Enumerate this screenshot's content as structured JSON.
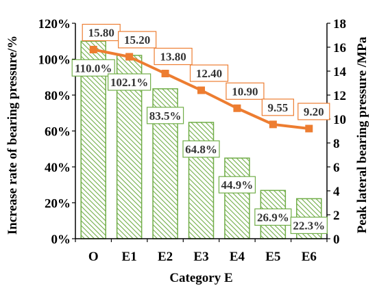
{
  "chart_data": {
    "type": "bar+line",
    "categories": [
      "O",
      "E1",
      "E2",
      "E3",
      "E4",
      "E5",
      "E6"
    ],
    "xlabel": "Category E",
    "ylabel_left": "Increase rate of bearing pressure/%",
    "ylabel_right": "Peak lateral bearing pressure /MPa",
    "ylim_left": [
      0,
      120
    ],
    "yticks_left": [
      "0%",
      "20%",
      "40%",
      "60%",
      "80%",
      "100%",
      "120%"
    ],
    "ylim_right": [
      0,
      18
    ],
    "yticks_right": [
      "0",
      "2",
      "4",
      "6",
      "8",
      "10",
      "12",
      "14",
      "16",
      "18"
    ],
    "grid": false,
    "series": [
      {
        "axis": "left",
        "kind": "bar",
        "values": [
          110.0,
          102.1,
          83.5,
          64.8,
          44.9,
          26.9,
          22.3
        ],
        "labels": [
          "110.0%",
          "102.1%",
          "83.5%",
          "64.8%",
          "44.9%",
          "26.9%",
          "22.3%"
        ],
        "color": "#70ad47",
        "pattern": "diagonal-hatch"
      },
      {
        "axis": "right",
        "kind": "line",
        "marker": "square",
        "values": [
          15.8,
          15.2,
          13.8,
          12.4,
          10.9,
          9.55,
          9.2
        ],
        "labels": [
          "15.80",
          "15.20",
          "13.80",
          "12.40",
          "10.90",
          "9.55",
          "9.20"
        ],
        "color": "#ed7d31"
      }
    ]
  }
}
